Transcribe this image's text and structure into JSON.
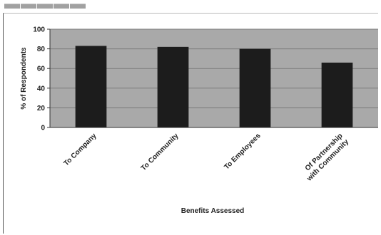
{
  "chart_data": {
    "type": "bar",
    "categories": [
      "To Company",
      "To Community",
      "To Employees",
      "Of Partnership with Community"
    ],
    "category_label_lines": [
      [
        "To Company"
      ],
      [
        "To Community"
      ],
      [
        "To Employees"
      ],
      [
        "Of Partnership",
        "with Community"
      ]
    ],
    "values": [
      83,
      82,
      80,
      66
    ],
    "title": "",
    "xlabel": "Benefits Assessed",
    "ylabel": "% of Respondents",
    "ylim": [
      0,
      100
    ],
    "yticks": [
      0,
      20,
      40,
      60,
      80,
      100
    ],
    "grid": true,
    "legend": "none",
    "colors": {
      "plot_background": "#a9a9a9",
      "bar": "#1c1c1c",
      "grid": "#7a7a7a",
      "axis": "#333333"
    }
  }
}
